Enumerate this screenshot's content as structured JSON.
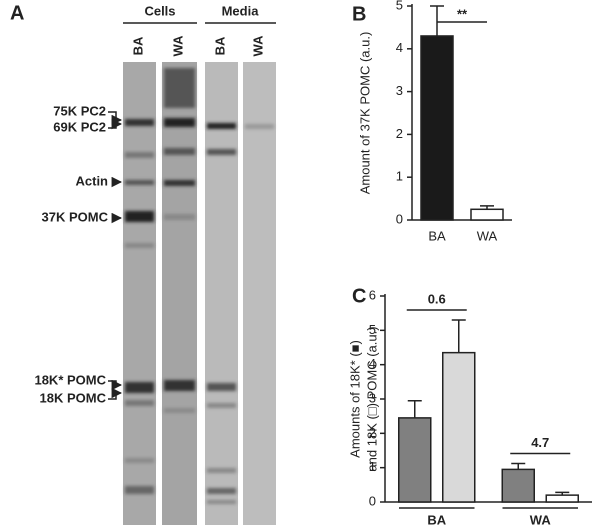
{
  "gel": {
    "label": "A",
    "groups": [
      {
        "title": "Cells",
        "lanes": [
          "BA",
          "WA"
        ]
      },
      {
        "title": "Media",
        "lanes": [
          "BA",
          "WA"
        ]
      }
    ],
    "markers": [
      "75K PC2",
      "69K PC2",
      "Actin",
      "37K POMC",
      "18K* POMC",
      "18K POMC"
    ]
  },
  "chart_data": [
    {
      "type": "bar",
      "label": "B",
      "ylabel": [
        "Amount of 37K POMC (a.u.)"
      ],
      "categories": [
        "BA",
        "WA"
      ],
      "series": [
        {
          "values": [
            4.3,
            0.25
          ],
          "errors": [
            0.7,
            0.08
          ],
          "colors": [
            "#1a1a1a",
            "#ffffff"
          ]
        }
      ],
      "annotations": [
        "**"
      ],
      "ylim": [
        0,
        5
      ],
      "yticks": [
        0,
        1,
        2,
        3,
        4,
        5
      ]
    },
    {
      "type": "bar",
      "label": "C",
      "ylabel": [
        "Amounts of 18K* (■)",
        "and 18K (□) POMC (a.u.)"
      ],
      "categories": [
        "BA",
        "WA"
      ],
      "series": [
        {
          "values": [
            2.45,
            0.95
          ],
          "errors": [
            0.5,
            0.17
          ],
          "colors": [
            "#808080",
            "#808080"
          ]
        },
        {
          "values": [
            4.35,
            0.2
          ],
          "errors": [
            0.95,
            0.08
          ],
          "colors": [
            "#d9d9d9",
            "#ffffff"
          ]
        }
      ],
      "annotations": [
        "0.6",
        "4.7"
      ],
      "ylim": [
        0,
        6
      ],
      "yticks": [
        0,
        1,
        2,
        3,
        4,
        5,
        6
      ]
    }
  ]
}
